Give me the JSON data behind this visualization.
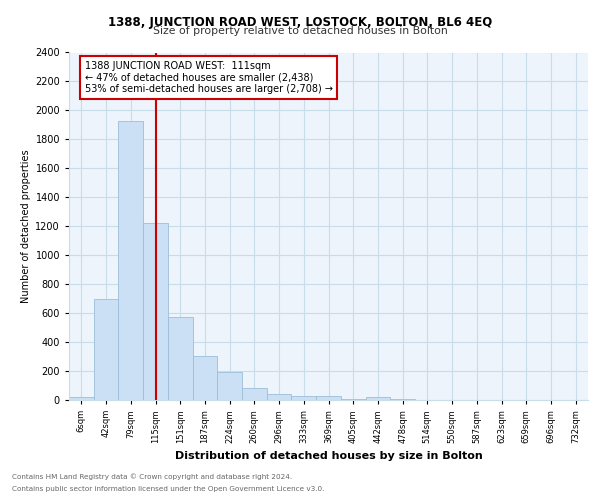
{
  "title": "1388, JUNCTION ROAD WEST, LOSTOCK, BOLTON, BL6 4EQ",
  "subtitle": "Size of property relative to detached houses in Bolton",
  "xlabel": "Distribution of detached houses by size in Bolton",
  "ylabel": "Number of detached properties",
  "bar_color": "#cce0f5",
  "bar_edge_color": "#9bbfd8",
  "bin_labels": [
    "6sqm",
    "42sqm",
    "79sqm",
    "115sqm",
    "151sqm",
    "187sqm",
    "224sqm",
    "260sqm",
    "296sqm",
    "333sqm",
    "369sqm",
    "405sqm",
    "442sqm",
    "478sqm",
    "514sqm",
    "550sqm",
    "587sqm",
    "623sqm",
    "659sqm",
    "696sqm",
    "732sqm"
  ],
  "bar_heights": [
    20,
    700,
    1930,
    1220,
    575,
    305,
    195,
    80,
    40,
    25,
    25,
    5,
    20,
    5,
    0,
    0,
    0,
    0,
    0,
    0,
    0
  ],
  "vline_x": 3,
  "vline_color": "#cc0000",
  "ylim": [
    0,
    2400
  ],
  "yticks": [
    0,
    200,
    400,
    600,
    800,
    1000,
    1200,
    1400,
    1600,
    1800,
    2000,
    2200,
    2400
  ],
  "annotation_title": "1388 JUNCTION ROAD WEST:  111sqm",
  "annotation_line1": "← 47% of detached houses are smaller (2,438)",
  "annotation_line2": "53% of semi-detached houses are larger (2,708) →",
  "annotation_box_color": "#ffffff",
  "annotation_box_edge": "#cc0000",
  "footer_line1": "Contains HM Land Registry data © Crown copyright and database right 2024.",
  "footer_line2": "Contains public sector information licensed under the Open Government Licence v3.0.",
  "grid_color": "#c8dcea",
  "background_color": "#edf4fb"
}
